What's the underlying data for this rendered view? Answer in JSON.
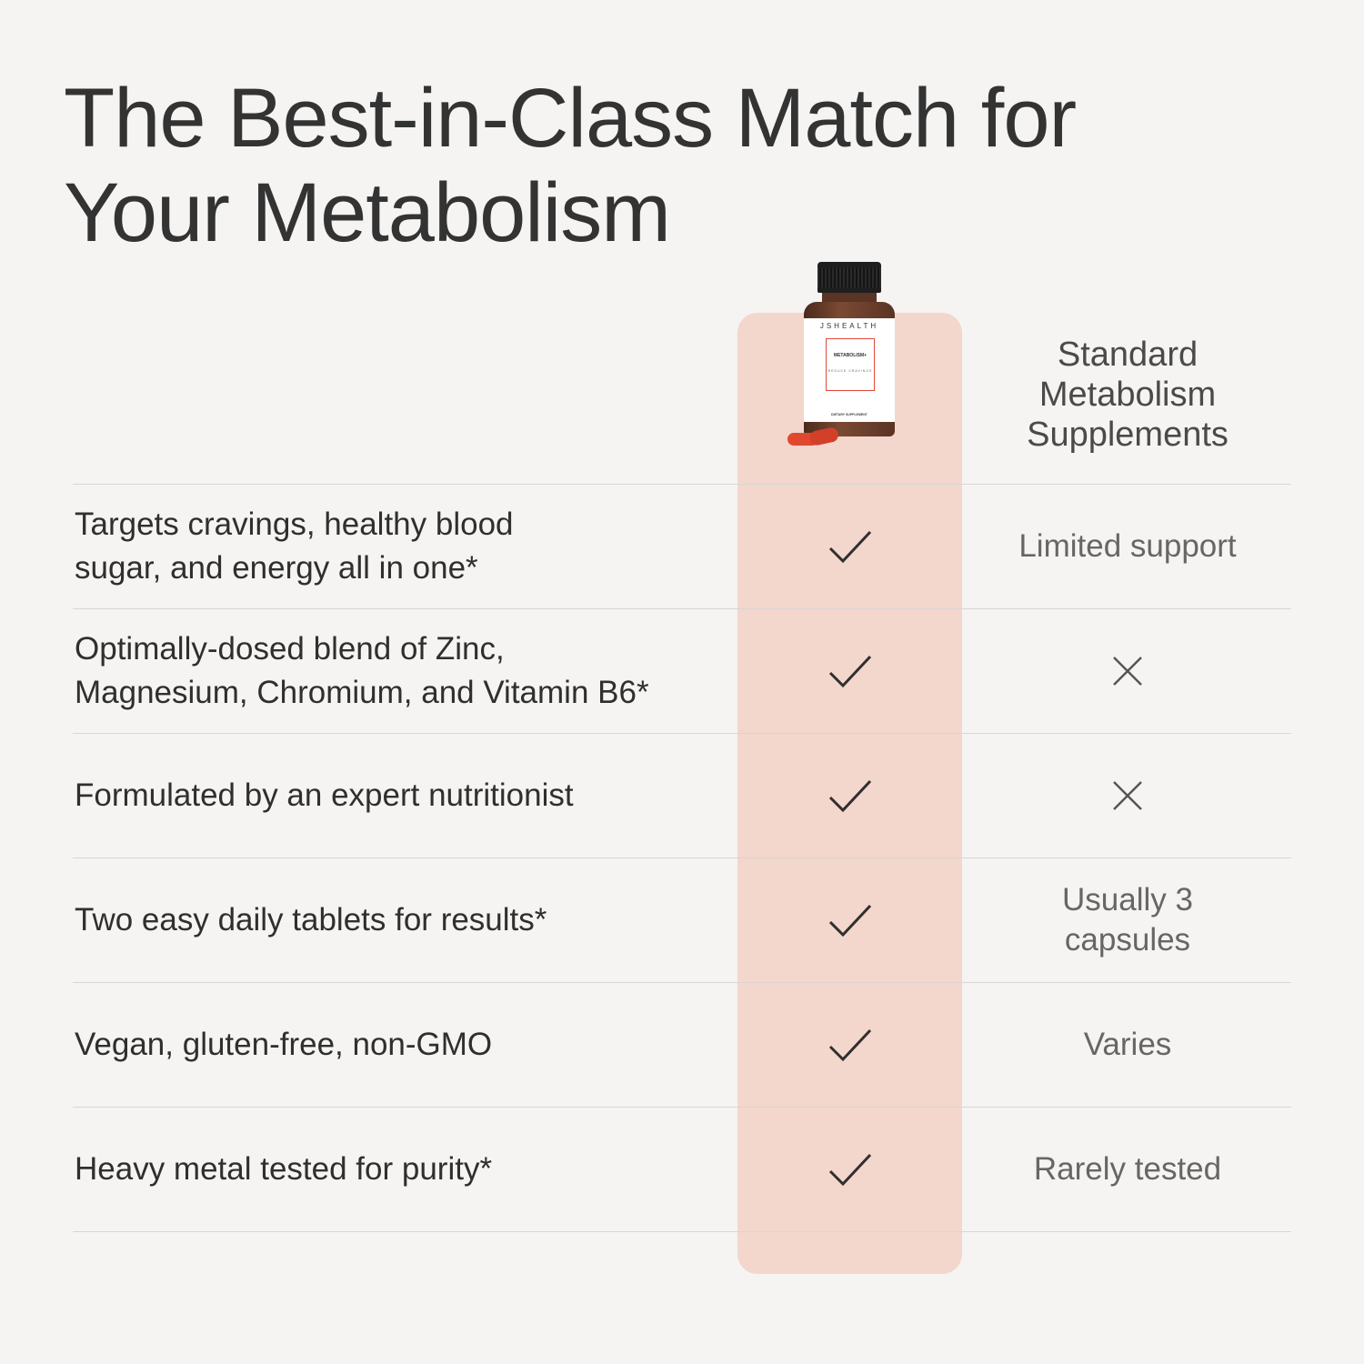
{
  "heading": {
    "line1": "The Best-in-Class Match for",
    "line2": "Your Metabolism"
  },
  "product": {
    "brand": "JSHEALTH",
    "name": "METABOLISM+",
    "subtitle": "REDUCE CRAVINGS",
    "label_footer": "DIETARY SUPPLEMENT",
    "icon": "supplement-bottle-image"
  },
  "columns": {
    "standard_line1": "Standard",
    "standard_line2": "Metabolism",
    "standard_line3": "Supplements"
  },
  "colors": {
    "background": "#f5f4f2",
    "highlight": "#f3d6cc",
    "text": "#2f2f2f",
    "muted_text": "#666666",
    "divider": "#d9d6d2"
  },
  "rows": [
    {
      "feature_line1": "Targets cravings, healthy blood",
      "feature_line2": "sugar, and energy all in one*",
      "ours": "check-icon",
      "standard": "Limited support"
    },
    {
      "feature_line1": "Optimally-dosed blend of Zinc,",
      "feature_line2": "Magnesium, Chromium, and Vitamin B6*",
      "ours": "check-icon",
      "standard_icon": "x-icon"
    },
    {
      "feature_line1": "Formulated by an expert nutritionist",
      "ours": "check-icon",
      "standard_icon": "x-icon"
    },
    {
      "feature_line1": "Two easy daily tablets for results*",
      "ours": "check-icon",
      "standard_line1": "Usually 3",
      "standard_line2": "capsules"
    },
    {
      "feature_line1": "Vegan, gluten-free, non-GMO",
      "ours": "check-icon",
      "standard": "Varies"
    },
    {
      "feature_line1": "Heavy metal tested for purity*",
      "ours": "check-icon",
      "standard": "Rarely tested"
    }
  ]
}
